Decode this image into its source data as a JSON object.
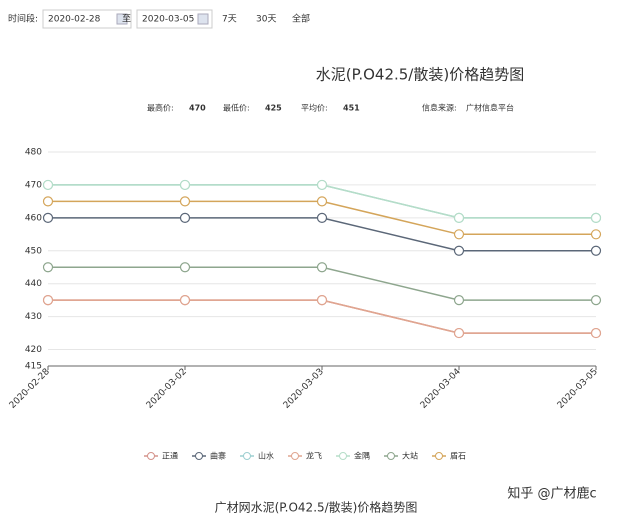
{
  "toolbar": {
    "label": "时间段:",
    "start": "2020-02-28",
    "to": "至",
    "end": "2020-03-05",
    "ranges": [
      "7天",
      "30天",
      "全部"
    ]
  },
  "chart_data": {
    "type": "line",
    "title": "水泥(P.O42.5/散装)价格趋势图",
    "categories": [
      "2020-02-28",
      "2020-03-02",
      "2020-03-03",
      "2020-03-04",
      "2020-03-05"
    ],
    "ylim": [
      415,
      480
    ],
    "yticks": [
      415,
      420,
      430,
      440,
      450,
      460,
      470,
      480
    ],
    "grid": true,
    "legend": "bottom",
    "series": [
      {
        "name": "正通",
        "color": "#d4928a",
        "values": [
          435,
          435,
          435,
          425,
          425
        ]
      },
      {
        "name": "曲寨",
        "color": "#5b6778",
        "values": [
          460,
          460,
          460,
          450,
          450
        ]
      },
      {
        "name": "山水",
        "color": "#9ccfd0",
        "values": [
          470,
          470,
          470,
          460,
          460
        ]
      },
      {
        "name": "龙飞",
        "color": "#e0a590",
        "values": [
          435,
          435,
          435,
          425,
          425
        ]
      },
      {
        "name": "金隅",
        "color": "#b5ddc8",
        "values": [
          470,
          470,
          470,
          460,
          460
        ]
      },
      {
        "name": "大站",
        "color": "#8ea68e",
        "values": [
          445,
          445,
          445,
          435,
          435
        ]
      },
      {
        "name": "盾石",
        "color": "#d4a55a",
        "values": [
          465,
          465,
          465,
          455,
          455
        ]
      }
    ]
  },
  "stats": [
    {
      "label": "最高价:",
      "value": 470
    },
    {
      "label": "最低价:",
      "value": 425
    },
    {
      "label": "平均价:",
      "value": 451
    }
  ],
  "source": {
    "label": "信息来源:",
    "text": "广材信息平台"
  },
  "caption": "广材网水泥(P.O42.5/散装)价格趋势图",
  "watermark": "知乎 @广材鹿c"
}
